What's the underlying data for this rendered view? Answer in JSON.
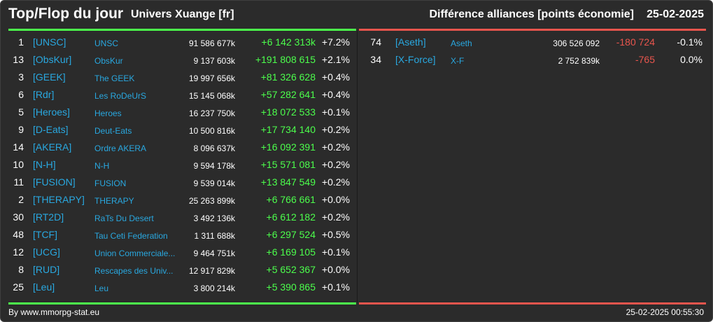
{
  "header": {
    "title": "Top/Flop du jour",
    "universe": "Univers Xuange [fr]",
    "diff_label": "Différence alliances [points économie]",
    "date": "25-02-2025"
  },
  "colors": {
    "background": "#2b2b2b",
    "top_accent": "#4cff4c",
    "flop_accent": "#e8554d",
    "tag_color": "#29a8e0"
  },
  "top": [
    {
      "rank": "1",
      "tag": "[UNSC]",
      "name": "UNSC",
      "points": "91 586 677k",
      "delta": "+6 142 313k",
      "pct": "+7.2%"
    },
    {
      "rank": "13",
      "tag": "[ObsKur]",
      "name": "ObsKur",
      "points": "9 137 603k",
      "delta": "+191 808 615",
      "pct": "+2.1%"
    },
    {
      "rank": "3",
      "tag": "[GEEK]",
      "name": "The GEEK",
      "points": "19 997 656k",
      "delta": "+81 326 628",
      "pct": "+0.4%"
    },
    {
      "rank": "6",
      "tag": "[Rdr]",
      "name": "Les RoDeUrS",
      "points": "15 145 068k",
      "delta": "+57 282 641",
      "pct": "+0.4%"
    },
    {
      "rank": "5",
      "tag": "[Heroes]",
      "name": "Heroes",
      "points": "16 237 750k",
      "delta": "+18 072 533",
      "pct": "+0.1%"
    },
    {
      "rank": "9",
      "tag": "[D-Eats]",
      "name": "Deut-Eats",
      "points": "10 500 816k",
      "delta": "+17 734 140",
      "pct": "+0.2%"
    },
    {
      "rank": "14",
      "tag": "[AKERA]",
      "name": "Ordre AKERA",
      "points": "8 096 637k",
      "delta": "+16 092 391",
      "pct": "+0.2%"
    },
    {
      "rank": "10",
      "tag": "[N-H]",
      "name": "N-H",
      "points": "9 594 178k",
      "delta": "+15 571 081",
      "pct": "+0.2%"
    },
    {
      "rank": "11",
      "tag": "[FUSION]",
      "name": "FUSION",
      "points": "9 539 014k",
      "delta": "+13 847 549",
      "pct": "+0.2%"
    },
    {
      "rank": "2",
      "tag": "[THERAPY]",
      "name": "THERAPY",
      "points": "25 263 899k",
      "delta": "+6 766 661",
      "pct": "+0.0%"
    },
    {
      "rank": "30",
      "tag": "[RT2D]",
      "name": "RaTs Du Desert",
      "points": "3 492 136k",
      "delta": "+6 612 182",
      "pct": "+0.2%"
    },
    {
      "rank": "48",
      "tag": "[TCF]",
      "name": "Tau Ceti Federation",
      "points": "1 311 688k",
      "delta": "+6 297 524",
      "pct": "+0.5%"
    },
    {
      "rank": "12",
      "tag": "[UCG]",
      "name": "Union Commerciale...",
      "points": "9 464 751k",
      "delta": "+6 169 105",
      "pct": "+0.1%"
    },
    {
      "rank": "8",
      "tag": "[RUD]",
      "name": "Rescapes des Univ...",
      "points": "12 917 829k",
      "delta": "+5 652 367",
      "pct": "+0.0%"
    },
    {
      "rank": "25",
      "tag": "[Leu]",
      "name": "Leu",
      "points": "3 800 214k",
      "delta": "+5 390 865",
      "pct": "+0.1%"
    }
  ],
  "flop": [
    {
      "rank": "74",
      "tag": "[Aseth]",
      "name": "Aseth",
      "points": "306 526 092",
      "delta": "-180 724",
      "pct": "-0.1%"
    },
    {
      "rank": "34",
      "tag": "[X-Force]",
      "name": "X-F",
      "points": "2 752 839k",
      "delta": "-765",
      "pct": "0.0%"
    }
  ],
  "footer": {
    "source": "By www.mmorpg-stat.eu",
    "timestamp": "25-02-2025 00:55:30"
  }
}
